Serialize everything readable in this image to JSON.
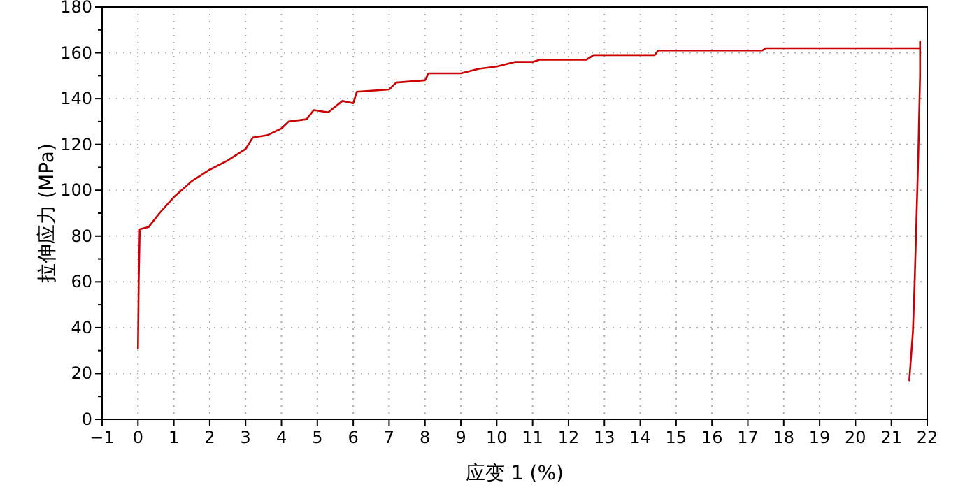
{
  "chart_data": {
    "type": "line",
    "xlabel": "应变 1 (%)",
    "ylabel": "拉伸应力 (MPa)",
    "xlim": [
      -1,
      22
    ],
    "ylim": [
      0,
      180
    ],
    "xticks": [
      -1,
      0,
      1,
      2,
      3,
      4,
      5,
      6,
      7,
      8,
      9,
      10,
      11,
      12,
      13,
      14,
      15,
      16,
      17,
      18,
      19,
      20,
      21,
      22
    ],
    "yticks": [
      0,
      {
        "value": 10,
        "label": null
      },
      20,
      {
        "value": 30,
        "label": null
      },
      40,
      {
        "value": 50,
        "label": null
      },
      60,
      {
        "value": 70,
        "label": null
      },
      80,
      {
        "value": 90,
        "label": null
      },
      100,
      {
        "value": 110,
        "label": null
      },
      120,
      {
        "value": 130,
        "label": null
      },
      140,
      {
        "value": 150,
        "label": null
      },
      160,
      {
        "value": 170,
        "label": null
      },
      180
    ],
    "grid": true,
    "marker": "none",
    "line_style": "solid",
    "series": [
      {
        "color": "#cc0000",
        "x": [
          0,
          0.02,
          0.05,
          0.3,
          0.6,
          1,
          1.5,
          2,
          2.5,
          3,
          3.2,
          3.6,
          4,
          4.2,
          4.7,
          4.9,
          5.3,
          5.7,
          6,
          6.1,
          7,
          7.2,
          8,
          8.1,
          9,
          9.5,
          10,
          10.5,
          11,
          11.2,
          12.5,
          12.7,
          14.4,
          14.5,
          17.4,
          17.5,
          21.8,
          21.8,
          21.8,
          21.75,
          21.65,
          21.6,
          21.5
        ],
        "values": [
          31,
          60,
          83,
          84,
          90,
          97,
          104,
          109,
          113,
          118,
          123,
          124,
          127,
          130,
          131,
          135,
          134,
          139,
          138,
          143,
          144,
          147,
          148,
          151,
          151,
          153,
          154,
          156,
          156,
          157,
          157,
          159,
          159,
          161,
          161,
          162,
          162,
          165,
          150,
          115,
          60,
          38,
          17
        ]
      }
    ]
  }
}
